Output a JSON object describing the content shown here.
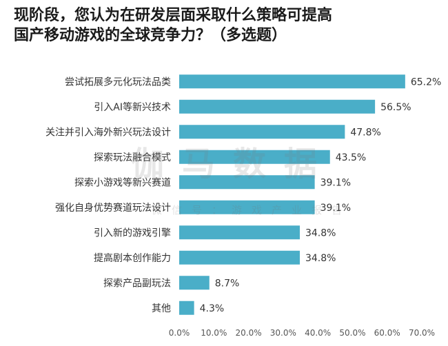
{
  "title_lines": [
    "现阶段，您认为在研发层面采取什么策略可提高",
    "国产移动游戏的全球竞争力？（多选题）"
  ],
  "watermark": {
    "main": "伽马数据",
    "sub": "微信号：游戏产业报告"
  },
  "colors": {
    "bar": "#4aaec8",
    "axis_text": "#555555",
    "label_text": "#333333"
  },
  "chart_data": {
    "type": "bar",
    "orientation": "horizontal",
    "categories": [
      "尝试拓展多元化玩法品类",
      "引入AI等新兴技术",
      "关注并引入海外新兴玩法设计",
      "探索玩法融合模式",
      "探索小游戏等新兴赛道",
      "强化自身优势赛道玩法设计",
      "引入新的游戏引擎",
      "提高剧本创作能力",
      "探索产品副玩法",
      "其他"
    ],
    "values": [
      65.2,
      56.5,
      47.8,
      43.5,
      39.1,
      39.1,
      34.8,
      34.8,
      8.7,
      4.3
    ],
    "value_labels": [
      "65.2%",
      "56.5%",
      "47.8%",
      "43.5%",
      "39.1%",
      "39.1%",
      "34.8%",
      "34.8%",
      "8.7%",
      "4.3%"
    ],
    "xlim": [
      0,
      70
    ],
    "x_ticks": [
      "0.0%",
      "10.0%",
      "20.0%",
      "30.0%",
      "40.0%",
      "50.0%",
      "60.0%",
      "70.0%"
    ],
    "grid": false,
    "legend": "none"
  }
}
